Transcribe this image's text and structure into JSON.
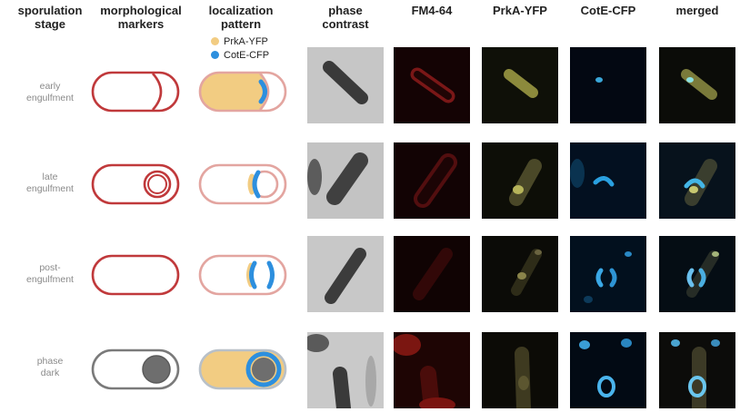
{
  "headers": {
    "stage": "sporulation\nstage",
    "markers": "morphological\nmarkers",
    "pattern": "localization\npattern",
    "phase": "phase\ncontrast",
    "fm": "FM4-64",
    "prka": "PrkA-YFP",
    "cote": "CotE-CFP",
    "merged": "merged"
  },
  "legend": {
    "prka": "PrkA-YFP",
    "cote": "CotE-CFP"
  },
  "colors": {
    "prka": "#f2cc82",
    "cote": "#2d8fde",
    "membrane_red": "#c0393b",
    "membrane_pink": "#e3a5a0",
    "gray": "#7a7a7a"
  },
  "rows": [
    {
      "label": "early\nengulfment"
    },
    {
      "label": "late\nengulfment"
    },
    {
      "label": "post-\nengulfment"
    },
    {
      "label": "phase\ndark"
    }
  ]
}
